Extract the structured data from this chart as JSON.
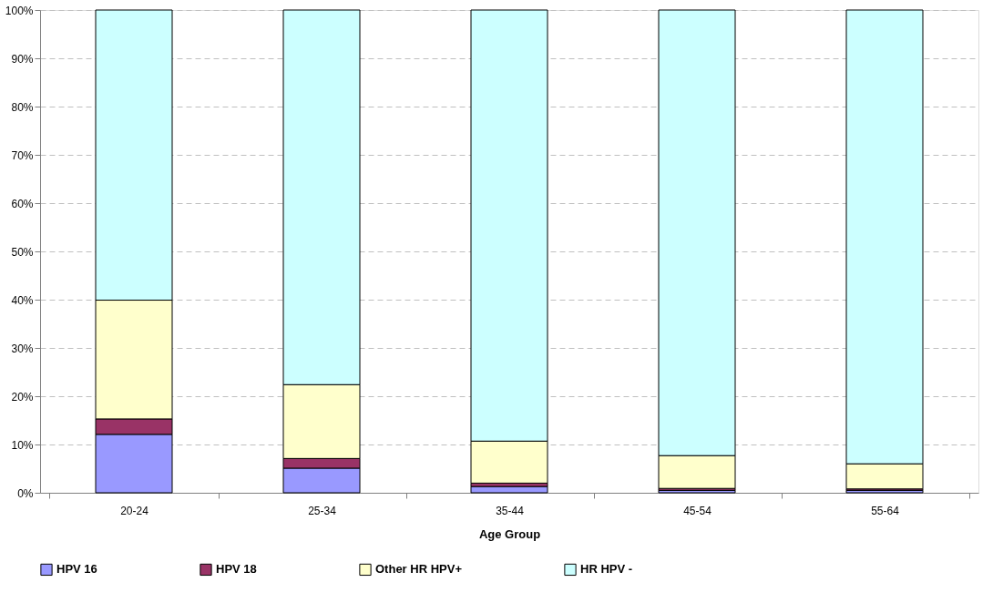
{
  "chart_data": {
    "type": "bar",
    "stacked": true,
    "xlabel": "Age Group",
    "categories": [
      "20-24",
      "25-34",
      "35-44",
      "45-54",
      "55-64"
    ],
    "series": [
      {
        "name": "HPV 16",
        "color": "#9999ff",
        "values": [
          12.1,
          5.1,
          1.3,
          0.5,
          0.5
        ]
      },
      {
        "name": "HPV 18",
        "color": "#993366",
        "values": [
          3.2,
          2.0,
          0.7,
          0.4,
          0.3
        ]
      },
      {
        "name": "Other HR HPV+",
        "color": "#ffffcc",
        "values": [
          24.6,
          15.3,
          8.7,
          6.8,
          5.2
        ]
      },
      {
        "name": "HR HPV -",
        "color": "#ccffff",
        "values": [
          60.1,
          77.6,
          89.3,
          92.3,
          94.0
        ]
      }
    ],
    "ylim": [
      0,
      100
    ],
    "yticks": [
      {
        "value": 0,
        "label": "0%"
      },
      {
        "value": 10,
        "label": "10%"
      },
      {
        "value": 20,
        "label": "20%"
      },
      {
        "value": 30,
        "label": "30%"
      },
      {
        "value": 40,
        "label": "40%"
      },
      {
        "value": 50,
        "label": "50%"
      },
      {
        "value": 60,
        "label": "60%"
      },
      {
        "value": 70,
        "label": "70%"
      },
      {
        "value": 80,
        "label": "80%"
      },
      {
        "value": 90,
        "label": "90%"
      },
      {
        "value": 100,
        "label": "100%"
      }
    ],
    "grid": "y",
    "legend": "bottom"
  }
}
